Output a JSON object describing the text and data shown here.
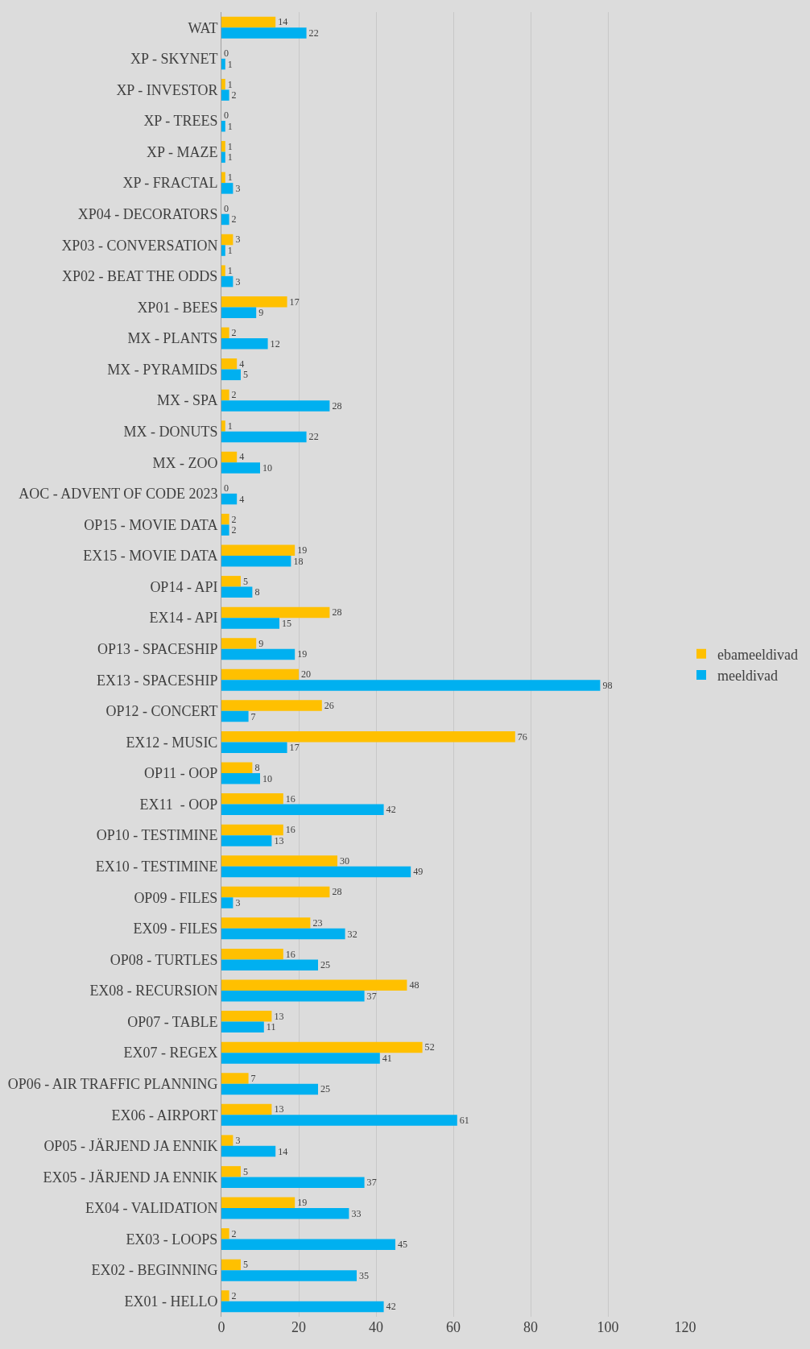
{
  "chart_data": {
    "type": "bar",
    "orientation": "horizontal",
    "categories": [
      "WAT",
      "XP - SKYNET",
      "XP - INVESTOR",
      "XP - TREES",
      "XP - MAZE",
      "XP - FRACTAL",
      "XP04 - DECORATORS",
      "XP03 - CONVERSATION",
      "XP02 - BEAT THE ODDS",
      "XP01 - BEES",
      "MX - PLANTS",
      "MX - PYRAMIDS",
      "MX - SPA",
      "MX - DONUTS",
      "MX - ZOO",
      "AOC - ADVENT OF CODE 2023",
      "OP15 - MOVIE DATA",
      "EX15 - MOVIE DATA",
      "OP14 - API",
      "EX14 - API",
      "OP13 - SPACESHIP",
      "EX13 - SPACESHIP",
      "OP12 - CONCERT",
      "EX12 - MUSIC",
      "OP11 - OOP",
      "EX11  - OOP",
      "OP10 - TESTIMINE",
      "EX10 - TESTIMINE",
      "OP09 - FILES",
      "EX09 - FILES",
      "OP08 - TURTLES",
      "EX08 - RECURSION",
      "OP07 - TABLE",
      "EX07 - REGEX",
      "OP06 - AIR TRAFFIC PLANNING",
      "EX06 - AIRPORT",
      "OP05 - JÄRJEND JA ENNIK",
      "EX05 - JÄRJEND JA ENNIK",
      "EX04 - VALIDATION",
      "EX03 - LOOPS",
      "EX02 - BEGINNING",
      "EX01 - HELLO"
    ],
    "series": [
      {
        "name": "ebameeldivad",
        "color": "#ffc000",
        "values": [
          14,
          0,
          1,
          0,
          1,
          1,
          0,
          3,
          1,
          17,
          2,
          4,
          2,
          1,
          4,
          0,
          2,
          19,
          5,
          28,
          9,
          20,
          26,
          76,
          8,
          16,
          16,
          30,
          28,
          23,
          16,
          48,
          13,
          52,
          7,
          13,
          3,
          5,
          19,
          2,
          5,
          2
        ]
      },
      {
        "name": "meeldivad",
        "color": "#00b0f0",
        "values": [
          22,
          1,
          2,
          1,
          1,
          3,
          2,
          1,
          3,
          9,
          12,
          5,
          28,
          22,
          10,
          4,
          2,
          18,
          8,
          15,
          19,
          98,
          7,
          17,
          10,
          42,
          13,
          49,
          3,
          32,
          25,
          37,
          11,
          41,
          25,
          61,
          14,
          37,
          33,
          45,
          35,
          42
        ]
      }
    ],
    "xlim": [
      0,
      120
    ],
    "xticks": [
      0,
      20,
      40,
      60,
      80,
      100,
      120
    ],
    "grid": "x",
    "legend": "right",
    "data_labels": true
  }
}
